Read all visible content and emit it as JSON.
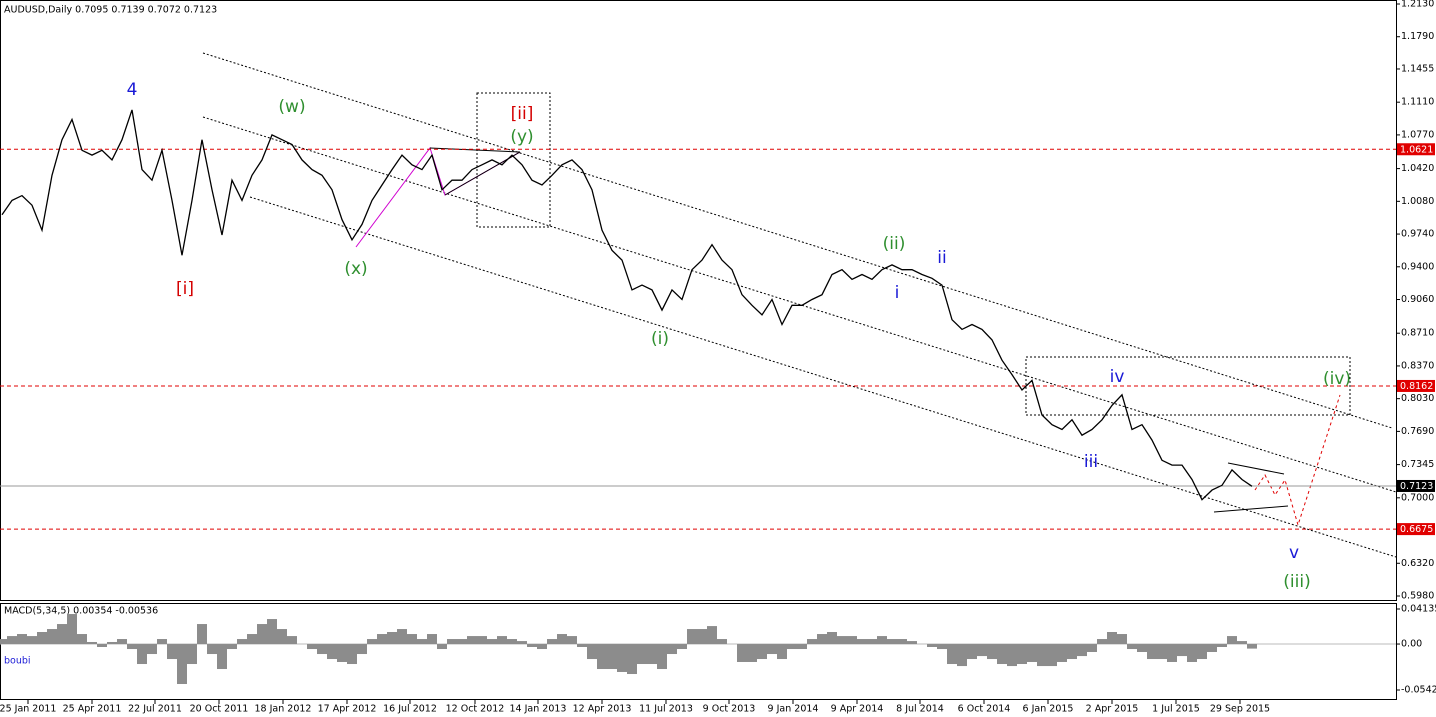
{
  "chart_data": [
    {
      "type": "line",
      "title": "AUDUSD,Daily  0.7095 0.7139 0.7072 0.7123",
      "color": "#000000",
      "values": [
        0.994,
        1.009,
        1.014,
        1.004,
        0.978,
        1.035,
        1.072,
        1.093,
        1.061,
        1.056,
        1.061,
        1.051,
        1.072,
        1.103,
        1.041,
        1.03,
        1.061,
        1.009,
        0.952,
        1.009,
        1.072,
        1.02,
        0.973,
        1.03,
        1.009,
        1.035,
        1.051,
        1.077,
        1.072,
        1.067,
        1.051,
        1.041,
        1.035,
        1.02,
        0.989,
        0.968,
        0.984,
        1.009,
        1.025,
        1.041,
        1.056,
        1.046,
        1.041,
        1.056,
        1.02,
        1.03,
        1.03,
        1.041,
        1.046,
        1.051,
        1.046,
        1.056,
        1.046,
        1.03,
        1.025,
        1.035,
        1.046,
        1.051,
        1.041,
        1.02,
        0.978,
        0.957,
        0.947,
        0.916,
        0.921,
        0.916,
        0.895,
        0.916,
        0.906,
        0.937,
        0.947,
        0.963,
        0.947,
        0.937,
        0.911,
        0.9,
        0.89,
        0.906,
        0.88,
        0.9,
        0.9,
        0.906,
        0.911,
        0.932,
        0.937,
        0.927,
        0.932,
        0.927,
        0.937,
        0.942,
        0.937,
        0.937,
        0.932,
        0.928,
        0.921,
        0.885,
        0.875,
        0.88,
        0.875,
        0.864,
        0.843,
        0.828,
        0.812,
        0.822,
        0.786,
        0.776,
        0.771,
        0.781,
        0.765,
        0.771,
        0.781,
        0.796,
        0.807,
        0.771,
        0.776,
        0.76,
        0.739,
        0.734,
        0.734,
        0.719,
        0.698,
        0.708,
        0.713,
        0.729,
        0.719,
        0.712
      ],
      "xlim": [
        -0.2,
        139.4
      ],
      "xticks": [
        {
          "value": 2.6,
          "label": "25 Jan 2011"
        },
        {
          "value": 9,
          "label": "25 Apr 2011"
        },
        {
          "value": 15.3,
          "label": "22 Jul 2011"
        },
        {
          "value": 21.7,
          "label": "20 Oct 2011"
        },
        {
          "value": 28.1,
          "label": "18 Jan 2012"
        },
        {
          "value": 34.5,
          "label": "17 Apr 2012"
        },
        {
          "value": 40.8,
          "label": "16 Jul 2012"
        },
        {
          "value": 47.3,
          "label": "12 Oct 2012"
        },
        {
          "value": 53.6,
          "label": "14 Jan 2013"
        },
        {
          "value": 60,
          "label": "12 Apr 2013"
        },
        {
          "value": 66.4,
          "label": "11 Jul 2013"
        },
        {
          "value": 72.7,
          "label": "9 Oct 2013"
        },
        {
          "value": 79.1,
          "label": "9 Jan 2014"
        },
        {
          "value": 85.5,
          "label": "9 Apr 2014"
        },
        {
          "value": 91.8,
          "label": "8 Jul 2014"
        },
        {
          "value": 98.2,
          "label": "6 Oct 2014"
        },
        {
          "value": 104.6,
          "label": "6 Jan 2015"
        },
        {
          "value": 111,
          "label": "2 Apr 2015"
        },
        {
          "value": 117.4,
          "label": "1 Jul 2015"
        },
        {
          "value": 123.8,
          "label": "29 Sep 2015"
        }
      ],
      "ylim": [
        0.598,
        1.213
      ],
      "yticks": [
        {
          "value": 1.213,
          "label": "1.2130"
        },
        {
          "value": 1.179,
          "label": "1.1790"
        },
        1.1455,
        {
          "value": 1.111,
          "label": "1.1110"
        },
        {
          "value": 1.077,
          "label": "1.0770"
        },
        {
          "value": 1.042,
          "label": "1.0420"
        },
        {
          "value": 1.008,
          "label": "1.0080"
        },
        {
          "value": 0.974,
          "label": "0.9740"
        },
        {
          "value": 0.94,
          "label": "0.9400"
        },
        {
          "value": 0.906,
          "label": "0.9060"
        },
        {
          "value": 0.871,
          "label": "0.8710"
        },
        {
          "value": 0.837,
          "label": "0.8370"
        },
        {
          "value": 0.803,
          "label": "0.8030"
        },
        {
          "value": 0.769,
          "label": "0.7690"
        },
        0.7345,
        {
          "value": 0.7,
          "label": "0.7000"
        },
        {
          "value": 0.632,
          "label": "0.6320"
        },
        {
          "value": 0.598,
          "label": "0.5980"
        }
      ],
      "hlines": [
        {
          "value": 1.0621,
          "color": "#e00000"
        },
        {
          "value": 0.8162,
          "color": "#e00000"
        },
        {
          "value": 0.6675,
          "color": "#e00000"
        },
        {
          "value": 0.7123,
          "color": "#000000"
        }
      ],
      "annotations": [
        {
          "text": "4",
          "color": "#1a1ad6"
        },
        {
          "text": "(w)",
          "color": "#2f8f2f"
        },
        {
          "text": "[ii]",
          "color": "#d40000"
        },
        {
          "text": "(y)",
          "color": "#2f8f2f"
        },
        {
          "text": "[i]",
          "color": "#d40000"
        },
        {
          "text": "(x)",
          "color": "#2f8f2f"
        },
        {
          "text": "(i)",
          "color": "#2f8f2f"
        },
        {
          "text": "(ii)",
          "color": "#2f8f2f"
        },
        {
          "text": "ii",
          "color": "#1a1ad6"
        },
        {
          "text": "i",
          "color": "#1a1ad6"
        },
        {
          "text": "iv",
          "color": "#1a1ad6"
        },
        {
          "text": "iii",
          "color": "#1a1ad6"
        },
        {
          "text": "(iv)",
          "color": "#2f8f2f"
        },
        {
          "text": "v",
          "color": "#1a1ad6"
        },
        {
          "text": "(iii)",
          "color": "#2f8f2f"
        }
      ]
    },
    {
      "type": "bar",
      "title": "MACD(5,34,5) 0.00354 -0.00536",
      "label": "boubi",
      "color": "#8c8c8c",
      "values": [
        0.0059,
        0.0094,
        0.0118,
        0.0094,
        0.0142,
        0.0177,
        0.0236,
        0.0354,
        0.0118,
        0.0024,
        -0.0035,
        0.0024,
        0.0059,
        -0.0059,
        -0.0236,
        -0.0118,
        0.0059,
        -0.0177,
        -0.0472,
        -0.0236,
        0.0236,
        -0.0118,
        -0.0295,
        -0.0059,
        0.0059,
        0.0118,
        0.0236,
        0.0295,
        0.0177,
        0.0094,
        0,
        -0.0059,
        -0.0118,
        -0.0177,
        -0.0212,
        -0.0236,
        -0.0118,
        0.0059,
        0.0118,
        0.0142,
        0.0177,
        0.0118,
        0.0059,
        0.0118,
        -0.0059,
        0.0059,
        0.0059,
        0.0094,
        0.0094,
        0.0059,
        0.0094,
        0.0059,
        0.0035,
        -0.0035,
        -0.0059,
        0.0059,
        0.0118,
        0.0094,
        -0.0035,
        -0.0177,
        -0.0295,
        -0.0295,
        -0.033,
        -0.0354,
        -0.0236,
        -0.0236,
        -0.0295,
        -0.0118,
        -0.0059,
        0.0177,
        0.0177,
        0.0212,
        0.0059,
        0,
        -0.0212,
        -0.0212,
        -0.0177,
        -0.0118,
        -0.0177,
        -0.0059,
        -0.0059,
        0.0059,
        0.0118,
        0.0142,
        0.0094,
        0.0094,
        0.0059,
        0.0059,
        0.0094,
        0.0059,
        0.0059,
        0.0035,
        0,
        -0.0035,
        -0.0059,
        -0.0236,
        -0.026,
        -0.0177,
        -0.0142,
        -0.0177,
        -0.0236,
        -0.026,
        -0.0236,
        -0.0212,
        -0.026,
        -0.026,
        -0.0212,
        -0.0177,
        -0.0142,
        -0.0094,
        0.0059,
        0.0142,
        0.0118,
        -0.0059,
        -0.0094,
        -0.0177,
        -0.0177,
        -0.0212,
        -0.0142,
        -0.0212,
        -0.0177,
        -0.0094,
        -0.0035,
        0.0094,
        0.0035,
        -0.0054
      ],
      "xlim": [
        -0.2,
        139.4
      ],
      "ylim": [
        -0.05427,
        0.04135
      ],
      "yticks": [
        0.04135,
        {
          "value": 0,
          "label": "0.00"
        },
        -0.05427
      ]
    }
  ]
}
